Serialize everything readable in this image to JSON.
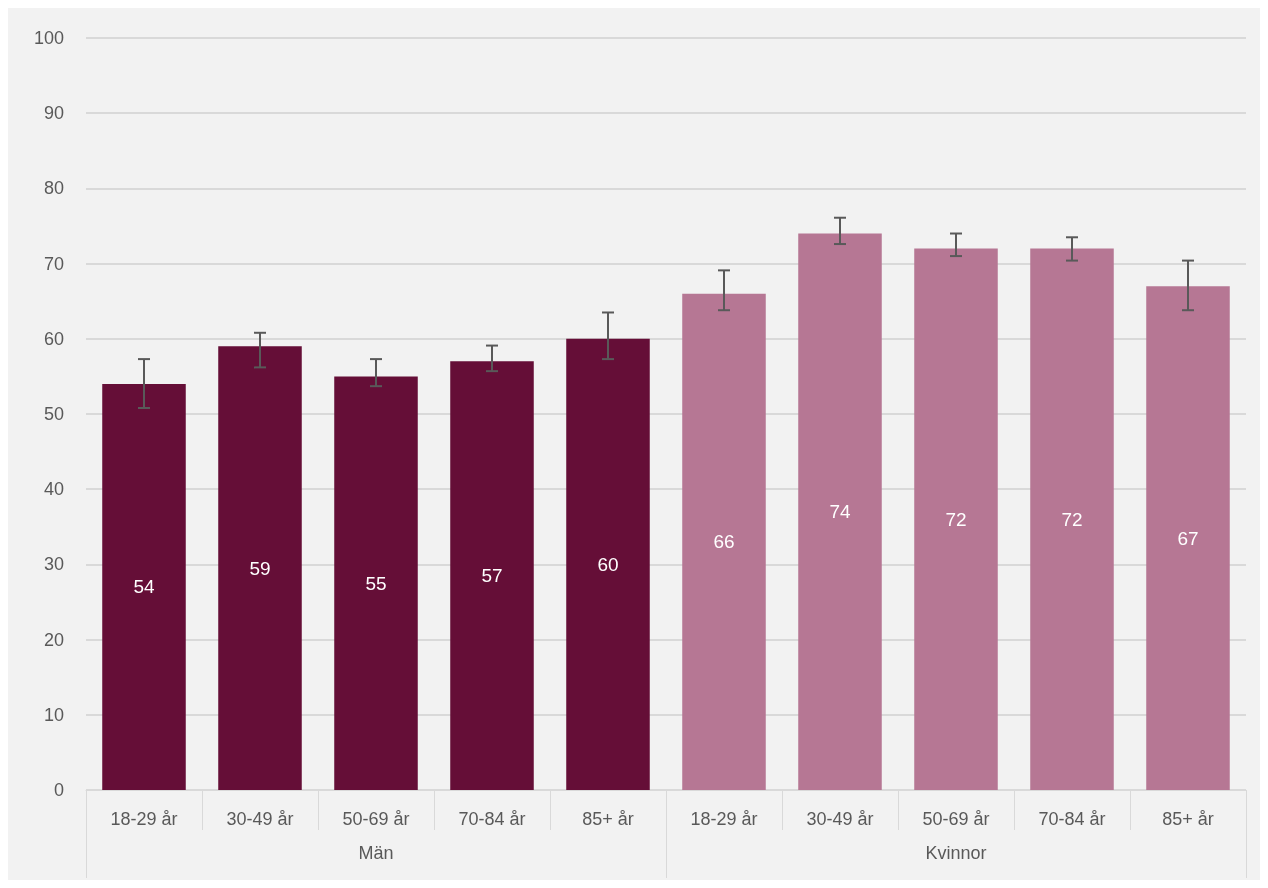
{
  "chart_data": {
    "type": "bar",
    "categories": [
      "18-29 år",
      "30-49 år",
      "50-69 år",
      "70-84 år",
      "85+ år",
      "18-29 år",
      "30-49 år",
      "50-69 år",
      "70-84 år",
      "85+ år"
    ],
    "series": [
      {
        "name": "Män",
        "color": "#650e37",
        "values": [
          54,
          59,
          55,
          57,
          60,
          null,
          null,
          null,
          null,
          null
        ],
        "errors": [
          [
            50.8,
            57.3
          ],
          [
            56.2,
            60.8
          ],
          [
            53.7,
            57.3
          ],
          [
            55.7,
            59.1
          ],
          [
            57.3,
            63.5
          ],
          null,
          null,
          null,
          null,
          null
        ]
      },
      {
        "name": "Kvinnor",
        "color": "#b67794",
        "values": [
          null,
          null,
          null,
          null,
          null,
          66,
          74,
          72,
          72,
          67
        ],
        "errors": [
          null,
          null,
          null,
          null,
          null,
          [
            63.8,
            69.1
          ],
          [
            72.6,
            76.1
          ],
          [
            71.0,
            74.0
          ],
          [
            70.4,
            73.5
          ],
          [
            63.8,
            70.4
          ]
        ]
      }
    ],
    "ylim": [
      0,
      100
    ],
    "yticks": [
      0,
      10,
      20,
      30,
      40,
      50,
      60,
      70,
      80,
      90,
      100
    ],
    "grid": "y",
    "legend": false,
    "data_labels": true
  }
}
